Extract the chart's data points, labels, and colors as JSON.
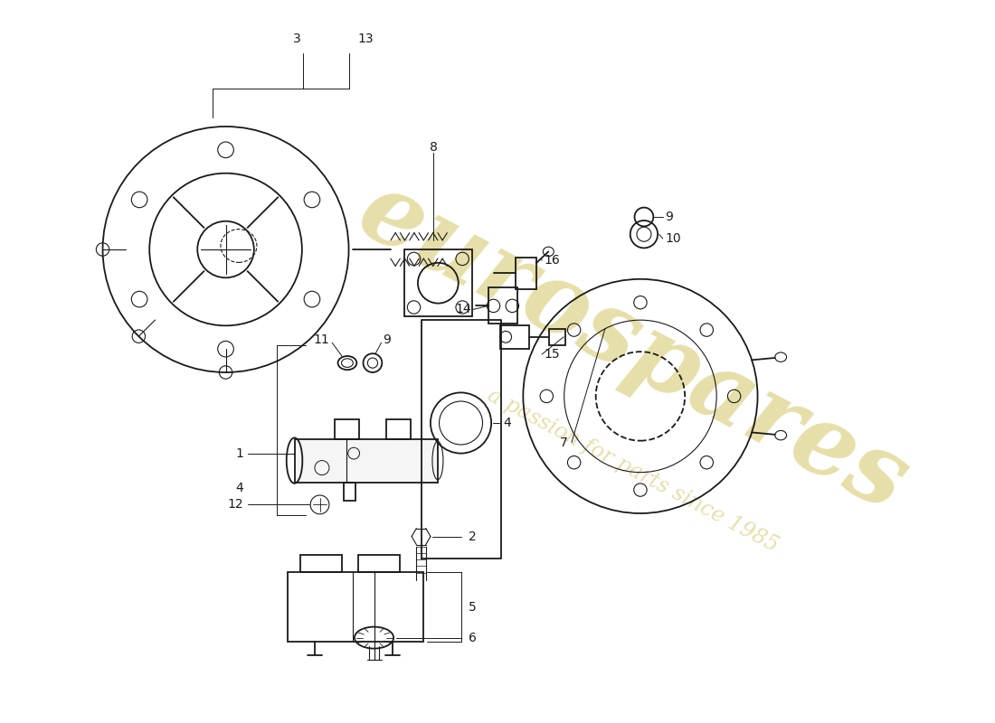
{
  "bg": "#ffffff",
  "lc": "#1a1a1a",
  "wm_color": "#c8b840",
  "wm_text": "eurospares",
  "wm_sub": "a passion for parts since 1985"
}
